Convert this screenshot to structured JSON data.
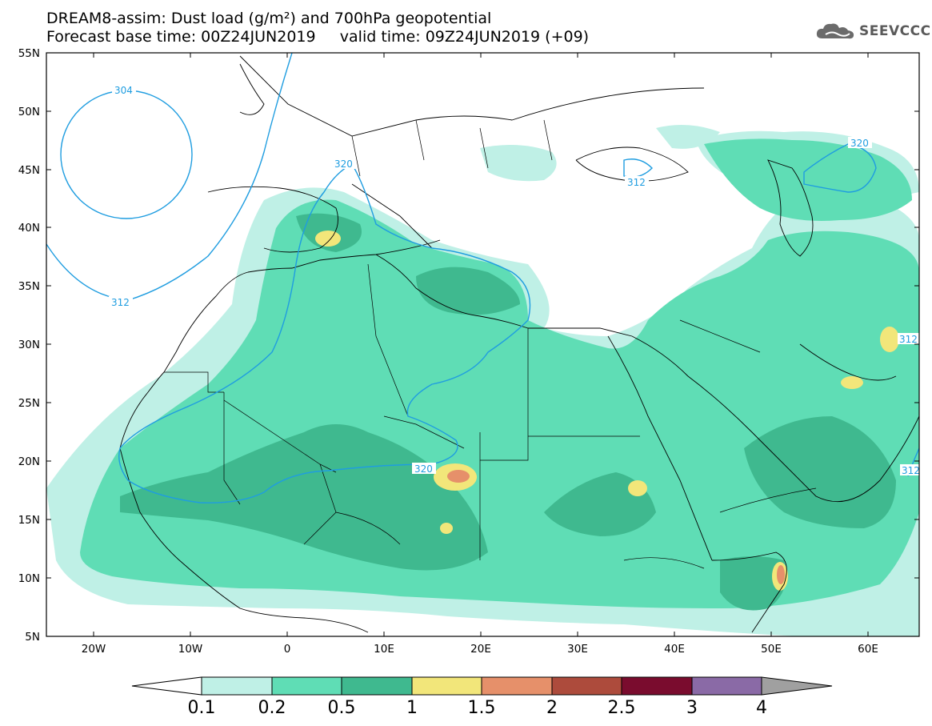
{
  "header": {
    "title_line1": "DREAM8-assim: Dust load (g/m²) and 700hPa geopotential",
    "title_line2": "Forecast base time: 00Z24JUN2019     valid time: 09Z24JUN2019 (+09)"
  },
  "logo": {
    "text": "SEEVCCC",
    "icon": "cloud-icon"
  },
  "map": {
    "lat_labels": [
      "55N",
      "50N",
      "45N",
      "40N",
      "35N",
      "30N",
      "25N",
      "20N",
      "15N",
      "10N",
      "5N"
    ],
    "lon_labels": [
      "20W",
      "10W",
      "0",
      "10E",
      "20E",
      "30E",
      "40E",
      "50E",
      "60E"
    ],
    "contour_labels": [
      "304",
      "320",
      "312",
      "312",
      "320",
      "320",
      "312",
      "312"
    ]
  },
  "legend": {
    "boundaries": [
      "0.1",
      "0.2",
      "0.5",
      "1",
      "1.5",
      "2",
      "2.5",
      "3",
      "4"
    ],
    "colors": [
      "#ffffff",
      "#bff0e6",
      "#5fddb5",
      "#3fb98f",
      "#f2e67a",
      "#e6906a",
      "#ad4b3c",
      "#7a0c2e",
      "#8a6aa6",
      "#a0a0a0"
    ]
  }
}
